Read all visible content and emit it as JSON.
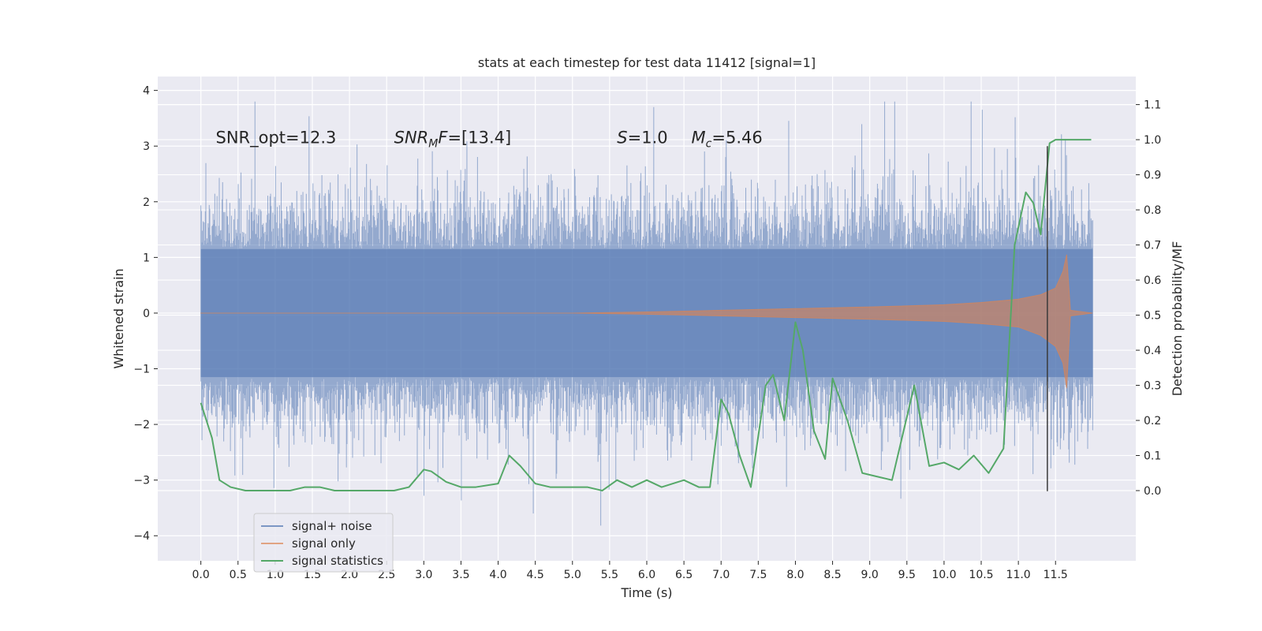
{
  "chart_data": {
    "type": "line",
    "title": "stats at each timestep for test data 11412 [signal=1]",
    "xlabel": "Time (s)",
    "ylabel": "Whitened strain",
    "ylabel_right": "Detection probability/MF",
    "xlim": [
      -0.58,
      12.58
    ],
    "ylim": [
      -4.45,
      4.25
    ],
    "ylim_right": [
      -0.2,
      1.18
    ],
    "x_ticks": [
      "0.0",
      "0.5",
      "1.0",
      "1.5",
      "2.0",
      "2.5",
      "3.0",
      "3.5",
      "4.0",
      "4.5",
      "5.0",
      "5.5",
      "6.0",
      "6.5",
      "7.0",
      "7.5",
      "8.0",
      "8.5",
      "9.0",
      "9.5",
      "10.0",
      "10.5",
      "11.0",
      "11.5"
    ],
    "y_ticks": [
      "4",
      "3",
      "2",
      "1",
      "0",
      "−1",
      "−2",
      "−3",
      "−4"
    ],
    "y_ticks_right": [
      "1.1",
      "1.0",
      "0.9",
      "0.8",
      "0.7",
      "0.6",
      "0.5",
      "0.4",
      "0.3",
      "0.2",
      "0.1",
      "0.0"
    ],
    "grid": true,
    "legend_position": "lower-left",
    "colors": {
      "background": "#eaeaf2",
      "grid": "#ffffff",
      "signal_noise": "#4c72b0",
      "signal_only": "#dd8452",
      "signal_statistics": "#55a868",
      "marker_line": "#3a3a3a"
    },
    "annotations": [
      {
        "text": "SNR_opt=12.3",
        "x": 0.2,
        "y": 3.05
      },
      {
        "text": "SNR_M F=[13.4]",
        "x": 2.6,
        "y": 3.05
      },
      {
        "text": "S=1.0",
        "x": 5.6,
        "y": 3.05
      },
      {
        "text": "M_c=5.46",
        "x": 6.6,
        "y": 3.05
      }
    ],
    "vertical_marker": {
      "x": 11.39,
      "y_range": [
        -3.2,
        3.0
      ]
    },
    "series": [
      {
        "name": "signal+ noise",
        "axis": "left",
        "x_range": [
          0.0,
          12.0
        ],
        "core_amplitude": 1.15,
        "noise_std": 1.0,
        "peak_high": 3.8,
        "peak_low": -4.1
      },
      {
        "name": "signal only",
        "axis": "left",
        "envelope": {
          "x": [
            0.0,
            5.0,
            6.0,
            7.0,
            8.0,
            9.0,
            10.0,
            10.5,
            11.0,
            11.3,
            11.5,
            11.6,
            11.65,
            11.7,
            12.0
          ],
          "upper": [
            0.0,
            0.0,
            0.02,
            0.05,
            0.08,
            0.11,
            0.15,
            0.19,
            0.25,
            0.33,
            0.45,
            0.75,
            1.05,
            0.05,
            0.0
          ],
          "lower": [
            0.0,
            0.0,
            -0.02,
            -0.05,
            -0.08,
            -0.11,
            -0.15,
            -0.19,
            -0.25,
            -0.4,
            -0.6,
            -0.9,
            -1.35,
            -0.05,
            0.0
          ]
        }
      },
      {
        "name": "signal statistics",
        "axis": "right",
        "x": [
          0.0,
          0.15,
          0.25,
          0.4,
          0.6,
          0.8,
          1.0,
          1.2,
          1.4,
          1.6,
          1.8,
          2.0,
          2.2,
          2.4,
          2.6,
          2.8,
          3.0,
          3.1,
          3.3,
          3.5,
          3.7,
          4.0,
          4.15,
          4.3,
          4.5,
          4.7,
          5.0,
          5.2,
          5.4,
          5.6,
          5.8,
          6.0,
          6.2,
          6.5,
          6.7,
          6.85,
          7.0,
          7.1,
          7.25,
          7.4,
          7.6,
          7.7,
          7.85,
          8.0,
          8.1,
          8.25,
          8.4,
          8.5,
          8.7,
          8.9,
          9.1,
          9.3,
          9.6,
          9.8,
          10.0,
          10.2,
          10.4,
          10.6,
          10.8,
          10.95,
          11.1,
          11.2,
          11.3,
          11.42,
          11.5,
          11.7,
          11.9,
          11.98
        ],
        "y": [
          0.25,
          0.15,
          0.03,
          0.01,
          0.0,
          0.0,
          0.0,
          0.0,
          0.01,
          0.01,
          0.0,
          0.0,
          0.0,
          0.0,
          0.0,
          0.01,
          0.06,
          0.055,
          0.025,
          0.01,
          0.01,
          0.02,
          0.1,
          0.07,
          0.02,
          0.01,
          0.01,
          0.01,
          0.0,
          0.03,
          0.01,
          0.03,
          0.01,
          0.03,
          0.01,
          0.01,
          0.26,
          0.22,
          0.1,
          0.01,
          0.3,
          0.33,
          0.2,
          0.48,
          0.4,
          0.17,
          0.09,
          0.32,
          0.2,
          0.05,
          0.04,
          0.03,
          0.3,
          0.07,
          0.08,
          0.06,
          0.1,
          0.05,
          0.12,
          0.7,
          0.85,
          0.82,
          0.73,
          0.99,
          1.0,
          1.0,
          1.0,
          1.0
        ]
      }
    ]
  }
}
